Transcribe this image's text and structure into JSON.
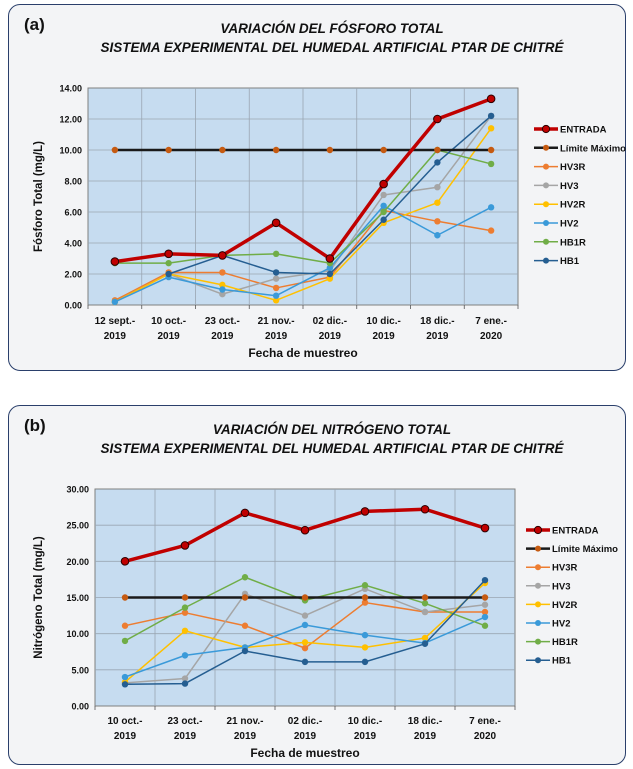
{
  "chart_data": [
    {
      "type": "line",
      "panel_label": "(a)",
      "title_line1": "VARIACIÓN DEL FÓSFORO TOTAL",
      "title_line2": "SISTEMA EXPERIMENTAL DEL HUMEDAL ARTIFICIAL PTAR DE CHITRÉ",
      "xlabel": "Fecha de muestreo",
      "ylabel": "Fósforo Total (mg/L)",
      "ylim": [
        0,
        14
      ],
      "yticks": [
        "0.00",
        "2.00",
        "4.00",
        "6.00",
        "8.00",
        "10.00",
        "12.00",
        "14.00"
      ],
      "categories": [
        [
          "12 sept.-",
          "2019"
        ],
        [
          "10 oct.-",
          "2019"
        ],
        [
          "23 oct.-",
          "2019"
        ],
        [
          "21 nov.-",
          "2019"
        ],
        [
          "02 dic.-",
          "2019"
        ],
        [
          "10 dic.-",
          "2019"
        ],
        [
          "18 dic.-",
          "2019"
        ],
        [
          "7 ene.-",
          "2020"
        ]
      ],
      "grid": true,
      "legend_position": "right",
      "series": [
        {
          "name": "ENTRADA",
          "color": "#c00000",
          "width": 3.5,
          "values": [
            2.8,
            3.3,
            3.2,
            5.3,
            3.0,
            7.8,
            12.0,
            13.3
          ]
        },
        {
          "name": "Límite Máximo",
          "color": "#1a1a1a",
          "width": 2.5,
          "marker": "#c55a11",
          "values": [
            10,
            10,
            10,
            10,
            10,
            10,
            10,
            10
          ]
        },
        {
          "name": "HV3R",
          "color": "#ed7d31",
          "width": 1.5,
          "values": [
            0.3,
            2.1,
            2.1,
            1.1,
            1.8,
            6.1,
            5.4,
            4.8
          ]
        },
        {
          "name": "HV3",
          "color": "#a5a5a5",
          "width": 1.5,
          "values": [
            0.2,
            2.0,
            0.7,
            1.7,
            2.2,
            7.1,
            7.6,
            12.2
          ]
        },
        {
          "name": "HV2R",
          "color": "#ffc000",
          "width": 1.5,
          "values": [
            0.2,
            2.0,
            1.3,
            0.3,
            1.7,
            5.3,
            6.6,
            11.4
          ]
        },
        {
          "name": "HV2",
          "color": "#3a9ad9",
          "width": 1.5,
          "values": [
            0.2,
            1.8,
            1.0,
            0.6,
            2.4,
            6.4,
            4.5,
            6.3
          ]
        },
        {
          "name": "HB1R",
          "color": "#70ad47",
          "width": 1.5,
          "values": [
            2.7,
            2.7,
            3.2,
            3.3,
            2.7,
            6.0,
            10.0,
            9.1
          ]
        },
        {
          "name": "HB1",
          "color": "#255e91",
          "width": 1.5,
          "values": [
            null,
            2.0,
            3.2,
            2.1,
            2.0,
            5.5,
            9.2,
            12.2
          ]
        }
      ]
    },
    {
      "type": "line",
      "panel_label": "(b)",
      "title_line1": "VARIACIÓN DEL NITRÓGENO TOTAL",
      "title_line2": "SISTEMA EXPERIMENTAL DEL HUMEDAL ARTIFICIAL PTAR DE CHITRÉ",
      "xlabel": "Fecha de muestreo",
      "ylabel": "Nitrógeno Total (mg/L)",
      "ylim": [
        0,
        30
      ],
      "yticks": [
        "0.00",
        "5.00",
        "10.00",
        "15.00",
        "20.00",
        "25.00",
        "30.00"
      ],
      "categories": [
        [
          "10 oct.-",
          "2019"
        ],
        [
          "23 oct.-",
          "2019"
        ],
        [
          "21 nov.-",
          "2019"
        ],
        [
          "02 dic.-",
          "2019"
        ],
        [
          "10 dic.-",
          "2019"
        ],
        [
          "18 dic.-",
          "2019"
        ],
        [
          "7 ene.-",
          "2020"
        ]
      ],
      "grid": true,
      "legend_position": "right",
      "series": [
        {
          "name": "ENTRADA",
          "color": "#c00000",
          "width": 3.5,
          "values": [
            20.0,
            22.2,
            26.7,
            24.3,
            26.9,
            27.2,
            24.6
          ]
        },
        {
          "name": "Límite Máximo",
          "color": "#1a1a1a",
          "width": 2.5,
          "marker": "#c55a11",
          "values": [
            15,
            15,
            15,
            15,
            15,
            15,
            15
          ]
        },
        {
          "name": "HV3R",
          "color": "#ed7d31",
          "width": 1.5,
          "values": [
            11.1,
            12.9,
            11.1,
            8.0,
            14.3,
            13.0,
            13.0
          ]
        },
        {
          "name": "HV3",
          "color": "#a5a5a5",
          "width": 1.5,
          "values": [
            3.2,
            3.8,
            15.5,
            12.5,
            16.2,
            13.0,
            14.0
          ]
        },
        {
          "name": "HV2R",
          "color": "#ffc000",
          "width": 1.5,
          "values": [
            3.3,
            10.4,
            8.1,
            8.8,
            8.1,
            9.4,
            17.0
          ]
        },
        {
          "name": "HV2",
          "color": "#3a9ad9",
          "width": 1.5,
          "values": [
            4.0,
            7.0,
            8.1,
            11.2,
            9.8,
            8.7,
            12.3
          ]
        },
        {
          "name": "HB1R",
          "color": "#70ad47",
          "width": 1.5,
          "values": [
            9.0,
            13.6,
            17.8,
            14.6,
            16.7,
            14.2,
            11.1
          ]
        },
        {
          "name": "HB1",
          "color": "#255e91",
          "width": 1.5,
          "values": [
            3.0,
            3.1,
            7.6,
            6.1,
            6.1,
            8.6,
            17.4
          ]
        }
      ]
    }
  ]
}
